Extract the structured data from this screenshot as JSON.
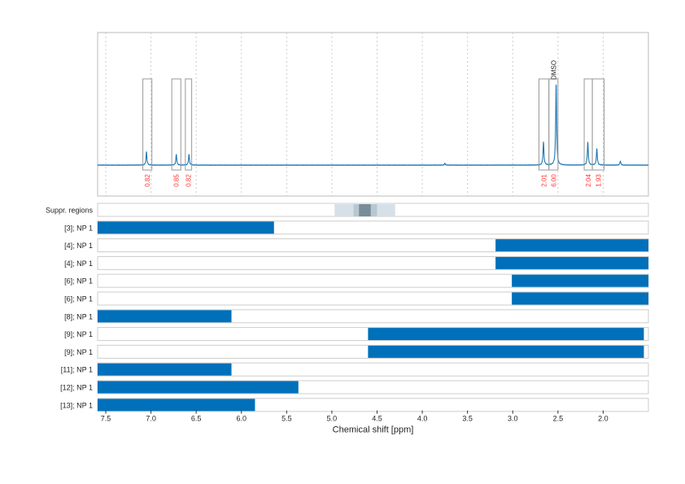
{
  "chart_data": {
    "type": "line",
    "xlabel": "Chemical shift [ppm]",
    "xlim": [
      7.59,
      1.5
    ],
    "x_reversed": true,
    "xticks": [
      7.5,
      7.0,
      6.5,
      6.0,
      5.5,
      5.0,
      4.5,
      4.0,
      3.5,
      3.0,
      2.5,
      2.0
    ],
    "xtick_labels": [
      "7.5",
      "7.0",
      "6.5",
      "6.0",
      "5.5",
      "5.0",
      "4.5",
      "4.0",
      "3.5",
      "3.0",
      "2.5",
      "2.0"
    ],
    "grid": true,
    "line_color": "#1f77b4",
    "peaks": [
      {
        "ppm": 7.05,
        "rel_intensity": 0.16
      },
      {
        "ppm": 6.72,
        "rel_intensity": 0.13
      },
      {
        "ppm": 6.58,
        "rel_intensity": 0.13
      },
      {
        "ppm": 2.66,
        "rel_intensity": 0.28
      },
      {
        "ppm": 2.52,
        "rel_intensity": 1.0
      },
      {
        "ppm": 2.17,
        "rel_intensity": 0.28
      },
      {
        "ppm": 2.07,
        "rel_intensity": 0.2
      },
      {
        "ppm": 3.75,
        "rel_intensity": 0.02
      },
      {
        "ppm": 1.81,
        "rel_intensity": 0.05
      }
    ],
    "integration_regions": [
      {
        "from": 7.09,
        "to": 6.99,
        "label": "0.82"
      },
      {
        "from": 6.77,
        "to": 6.67,
        "label": "0.85"
      },
      {
        "from": 6.62,
        "to": 6.55,
        "label": "0.82"
      },
      {
        "from": 2.71,
        "to": 2.6,
        "label": "2.01"
      },
      {
        "from": 2.6,
        "to": 2.5,
        "label": "6.00",
        "annotation": "DMSO"
      },
      {
        "from": 2.21,
        "to": 2.12,
        "label": "2.04"
      },
      {
        "from": 2.12,
        "to": 1.99,
        "label": "1.93"
      }
    ],
    "integral_label_color": "#ff3333",
    "suppression": {
      "label": "Suppr. regions",
      "bands": [
        {
          "from": 4.97,
          "to": 4.3,
          "color": "#d6e0e8"
        },
        {
          "from": 4.76,
          "to": 4.5,
          "color": "#b8c8d2"
        },
        {
          "from": 4.7,
          "to": 4.57,
          "color": "#788c99"
        }
      ]
    },
    "range_rows": {
      "bar_color": "#0070ba",
      "rows": [
        {
          "label": "[3]; NP 1",
          "from": 7.59,
          "to": 5.64
        },
        {
          "label": "[4]; NP 1",
          "from": 3.19,
          "to": 1.5
        },
        {
          "label": "[4]; NP 1",
          "from": 3.19,
          "to": 1.5
        },
        {
          "label": "[6]; NP 1",
          "from": 3.01,
          "to": 1.5
        },
        {
          "label": "[6]; NP 1",
          "from": 3.01,
          "to": 1.5
        },
        {
          "label": "[8]; NP 1",
          "from": 7.59,
          "to": 6.11
        },
        {
          "label": "[9]; NP 1",
          "from": 4.6,
          "to": 1.55
        },
        {
          "label": "[9]; NP 1",
          "from": 4.6,
          "to": 1.55
        },
        {
          "label": "[11]; NP 1",
          "from": 7.59,
          "to": 6.11
        },
        {
          "label": "[12]; NP 1",
          "from": 7.59,
          "to": 5.37
        },
        {
          "label": "[13]; NP 1",
          "from": 7.59,
          "to": 5.85
        }
      ]
    }
  }
}
